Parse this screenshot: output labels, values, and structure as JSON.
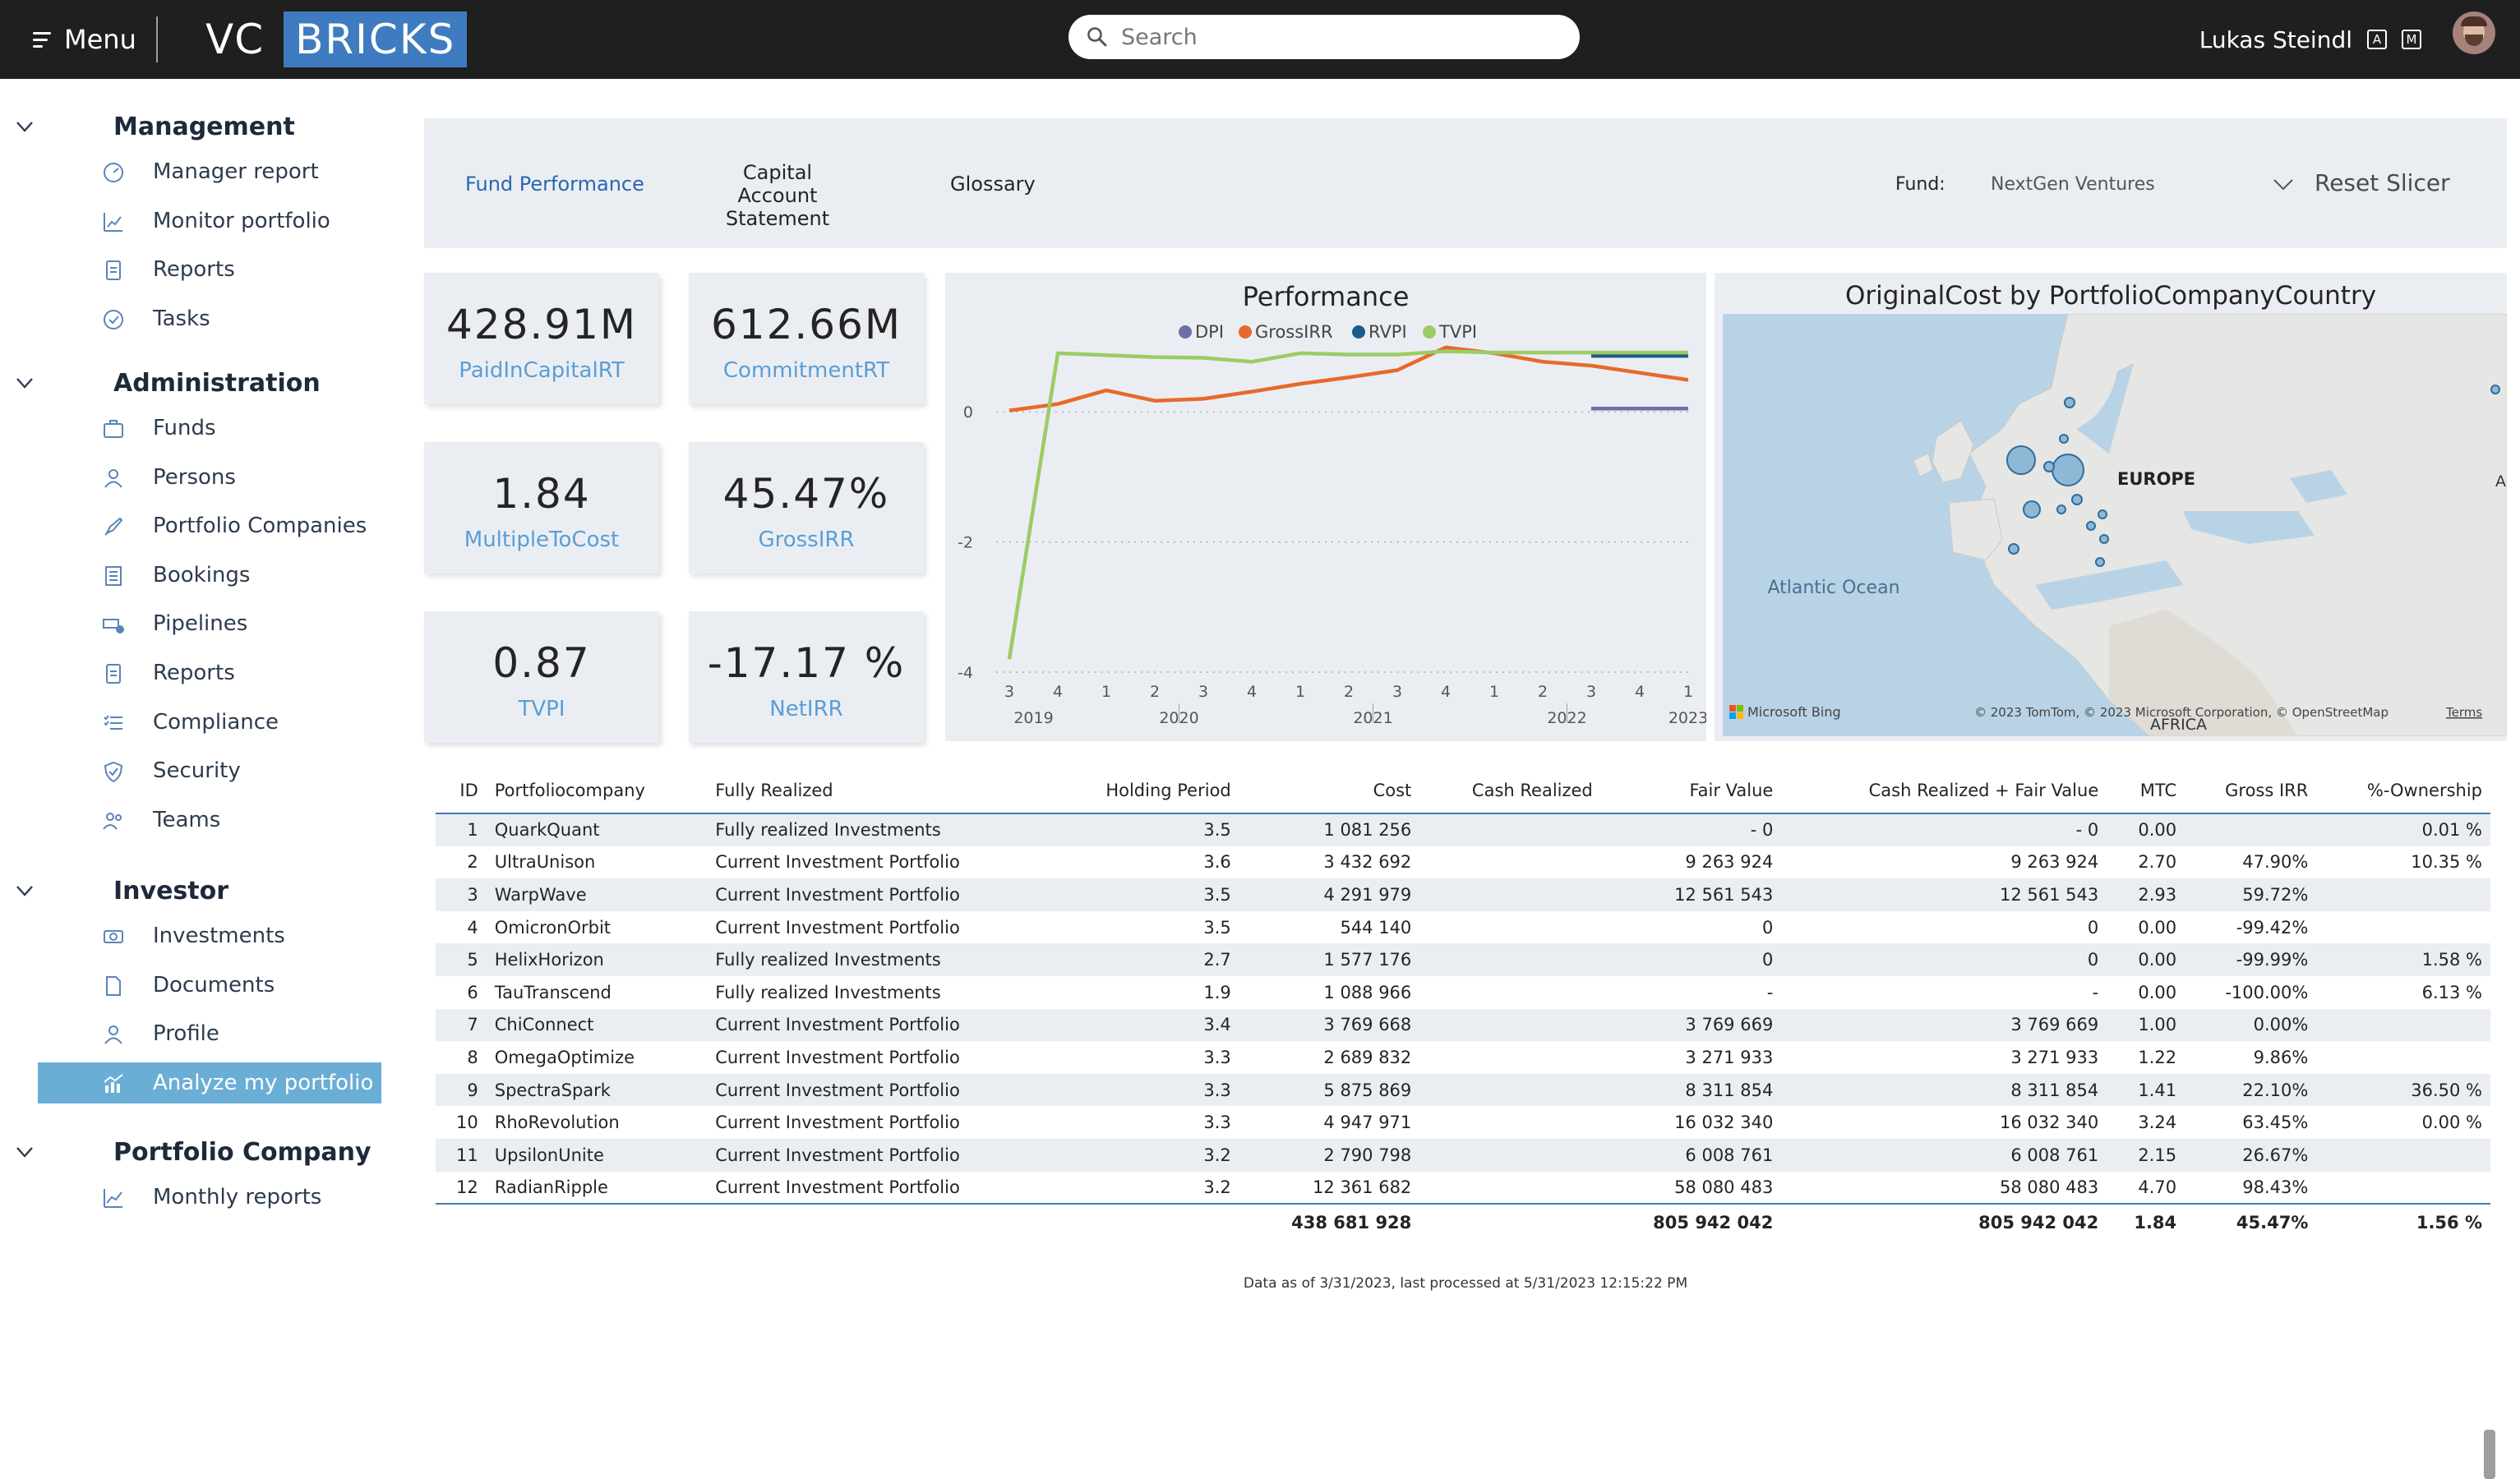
{
  "topbar": {
    "menu_label": "Menu",
    "logo_vc": "VC",
    "logo_bricks": "BRICKS",
    "search_placeholder": "Search",
    "user_name": "Lukas Steindl",
    "badge_a": "A",
    "badge_m": "M"
  },
  "sidebar": {
    "sections": [
      {
        "label": "Management",
        "items": [
          {
            "label": "Manager report",
            "icon": "gauge-icon"
          },
          {
            "label": "Monitor portfolio",
            "icon": "chart-icon"
          },
          {
            "label": "Reports",
            "icon": "document-icon"
          },
          {
            "label": "Tasks",
            "icon": "check-circle-icon"
          }
        ]
      },
      {
        "label": "Administration",
        "items": [
          {
            "label": "Funds",
            "icon": "briefcase-icon"
          },
          {
            "label": "Persons",
            "icon": "person-icon"
          },
          {
            "label": "Portfolio Companies",
            "icon": "rocket-icon"
          },
          {
            "label": "Bookings",
            "icon": "ledger-icon"
          },
          {
            "label": "Pipelines",
            "icon": "pipeline-icon"
          },
          {
            "label": "Reports",
            "icon": "document-icon"
          },
          {
            "label": "Compliance",
            "icon": "checklist-icon"
          },
          {
            "label": "Security",
            "icon": "shield-icon"
          },
          {
            "label": "Teams",
            "icon": "team-icon"
          }
        ]
      },
      {
        "label": "Investor",
        "items": [
          {
            "label": "Investments",
            "icon": "money-icon"
          },
          {
            "label": "Documents",
            "icon": "file-icon"
          },
          {
            "label": "Profile",
            "icon": "person-icon"
          },
          {
            "label": "Analyze my portfolio",
            "icon": "analytics-icon",
            "active": true
          }
        ]
      },
      {
        "label": "Portfolio Company",
        "items": [
          {
            "label": "Monthly reports",
            "icon": "line-chart-icon"
          }
        ]
      }
    ]
  },
  "tabs": {
    "fund_performance": "Fund Performance",
    "capital_account": "Capital Account Statement",
    "glossary": "Glossary"
  },
  "slicer": {
    "label": "Fund:",
    "value": "NextGen Ventures",
    "reset": "Reset Slicer"
  },
  "kpis": [
    {
      "value": "428.91M",
      "caption": "PaidInCapitalRT"
    },
    {
      "value": "612.66M",
      "caption": "CommitmentRT"
    },
    {
      "value": "1.84",
      "caption": "MultipleToCost"
    },
    {
      "value": "45.47%",
      "caption": "GrossIRR"
    },
    {
      "value": "0.87",
      "caption": "TVPI"
    },
    {
      "value": "-17.17 %",
      "caption": "NetIRR"
    }
  ],
  "chart_data": {
    "type": "line",
    "title": "Performance",
    "x": [
      "2019 Q3",
      "2019 Q4",
      "2020 Q1",
      "2020 Q2",
      "2020 Q3",
      "2020 Q4",
      "2021 Q1",
      "2021 Q2",
      "2021 Q3",
      "2021 Q4",
      "2022 Q1",
      "2022 Q2",
      "2022 Q3",
      "2022 Q4",
      "2023 Q1"
    ],
    "quarter_ticks": [
      "3",
      "4",
      "1",
      "2",
      "3",
      "4",
      "1",
      "2",
      "3",
      "4",
      "1",
      "2",
      "3",
      "4",
      "1"
    ],
    "year_ticks": [
      {
        "label": "2019",
        "at": 0.5
      },
      {
        "label": "2020",
        "at": 3.5
      },
      {
        "label": "2021",
        "at": 7.5
      },
      {
        "label": "2022",
        "at": 11.5
      },
      {
        "label": "2023",
        "at": 14
      }
    ],
    "ylim": [
      -4,
      1.0
    ],
    "yticks": [
      0,
      -2,
      -4
    ],
    "grid": true,
    "legend_position": "top-center",
    "series": [
      {
        "name": "DPI",
        "color": "#6b6faa",
        "values": [
          null,
          null,
          null,
          null,
          null,
          null,
          null,
          null,
          null,
          null,
          null,
          null,
          0.05,
          0.05,
          0.05
        ]
      },
      {
        "name": "GrossIRR",
        "color": "#e8692a",
        "values": [
          0.02,
          0.12,
          0.33,
          0.17,
          0.2,
          0.31,
          0.43,
          0.53,
          0.64,
          0.99,
          0.9,
          0.77,
          0.71,
          0.6,
          0.49
        ]
      },
      {
        "name": "RVPI",
        "color": "#1d5a8a",
        "values": [
          null,
          null,
          null,
          null,
          null,
          null,
          null,
          null,
          null,
          null,
          null,
          null,
          0.86,
          0.86,
          0.86
        ]
      },
      {
        "name": "TVPI",
        "color": "#9ccc65",
        "values": [
          -3.8,
          0.9,
          0.87,
          0.84,
          0.83,
          0.77,
          0.9,
          0.88,
          0.88,
          0.93,
          0.91,
          0.91,
          0.91,
          0.91,
          0.91
        ]
      }
    ]
  },
  "map": {
    "title": "OriginalCost by PortfolioCompanyCountry",
    "labels": {
      "europe": "EUROPE",
      "ocean": "Atlantic Ocean",
      "africa": "AFRICA",
      "asia": "A"
    },
    "attribution": "© 2023 TomTom, © 2023 Microsoft Corporation, © OpenStreetMap",
    "terms": "Terms",
    "bing": "Microsoft Bing"
  },
  "table": {
    "columns": [
      "ID",
      "Portfoliocompany",
      "Fully Realized",
      "Holding Period",
      "Cost",
      "Cash Realized",
      "Fair Value",
      "Cash Realized + Fair Value",
      "MTC",
      "Gross IRR",
      "%-Ownership"
    ],
    "rows": [
      [
        "1",
        "QuarkQuant",
        "Fully realized Investments",
        "3.5",
        "1 081 256",
        "",
        "- 0",
        "- 0",
        "0.00",
        "",
        "0.01 %"
      ],
      [
        "2",
        "UltraUnison",
        "Current Investment Portfolio",
        "3.6",
        "3 432 692",
        "",
        "9 263 924",
        "9 263 924",
        "2.70",
        "47.90%",
        "10.35 %"
      ],
      [
        "3",
        "WarpWave",
        "Current Investment Portfolio",
        "3.5",
        "4 291 979",
        "",
        "12 561 543",
        "12 561 543",
        "2.93",
        "59.72%",
        ""
      ],
      [
        "4",
        "OmicronOrbit",
        "Current Investment Portfolio",
        "3.5",
        "544 140",
        "",
        "0",
        "0",
        "0.00",
        "-99.42%",
        ""
      ],
      [
        "5",
        "HelixHorizon",
        "Fully realized Investments",
        "2.7",
        "1 577 176",
        "",
        "0",
        "0",
        "0.00",
        "-99.99%",
        "1.58 %"
      ],
      [
        "6",
        "TauTranscend",
        "Fully realized Investments",
        "1.9",
        "1 088 966",
        "",
        "-",
        "-",
        "0.00",
        "-100.00%",
        "6.13 %"
      ],
      [
        "7",
        "ChiConnect",
        "Current Investment Portfolio",
        "3.4",
        "3 769 668",
        "",
        "3 769 669",
        "3 769 669",
        "1.00",
        "0.00%",
        ""
      ],
      [
        "8",
        "OmegaOptimize",
        "Current Investment Portfolio",
        "3.3",
        "2 689 832",
        "",
        "3 271 933",
        "3 271 933",
        "1.22",
        "9.86%",
        ""
      ],
      [
        "9",
        "SpectraSpark",
        "Current Investment Portfolio",
        "3.3",
        "5 875 869",
        "",
        "8 311 854",
        "8 311 854",
        "1.41",
        "22.10%",
        "36.50 %"
      ],
      [
        "10",
        "RhoRevolution",
        "Current Investment Portfolio",
        "3.3",
        "4 947 971",
        "",
        "16 032 340",
        "16 032 340",
        "3.24",
        "63.45%",
        "0.00 %"
      ],
      [
        "11",
        "UpsilonUnite",
        "Current Investment Portfolio",
        "3.2",
        "2 790 798",
        "",
        "6 008 761",
        "6 008 761",
        "2.15",
        "26.67%",
        ""
      ],
      [
        "12",
        "RadianRipple",
        "Current Investment Portfolio",
        "3.2",
        "12 361 682",
        "",
        "58 080 483",
        "58 080 483",
        "4.70",
        "98.43%",
        ""
      ]
    ],
    "totals": [
      "",
      "",
      "",
      "",
      "438 681 928",
      "",
      "805 942 042",
      "805 942 042",
      "1.84",
      "45.47%",
      "1.56 %"
    ]
  },
  "footer": "Data as of 3/31/2023, last processed at 5/31/2023 12:15:22 PM"
}
